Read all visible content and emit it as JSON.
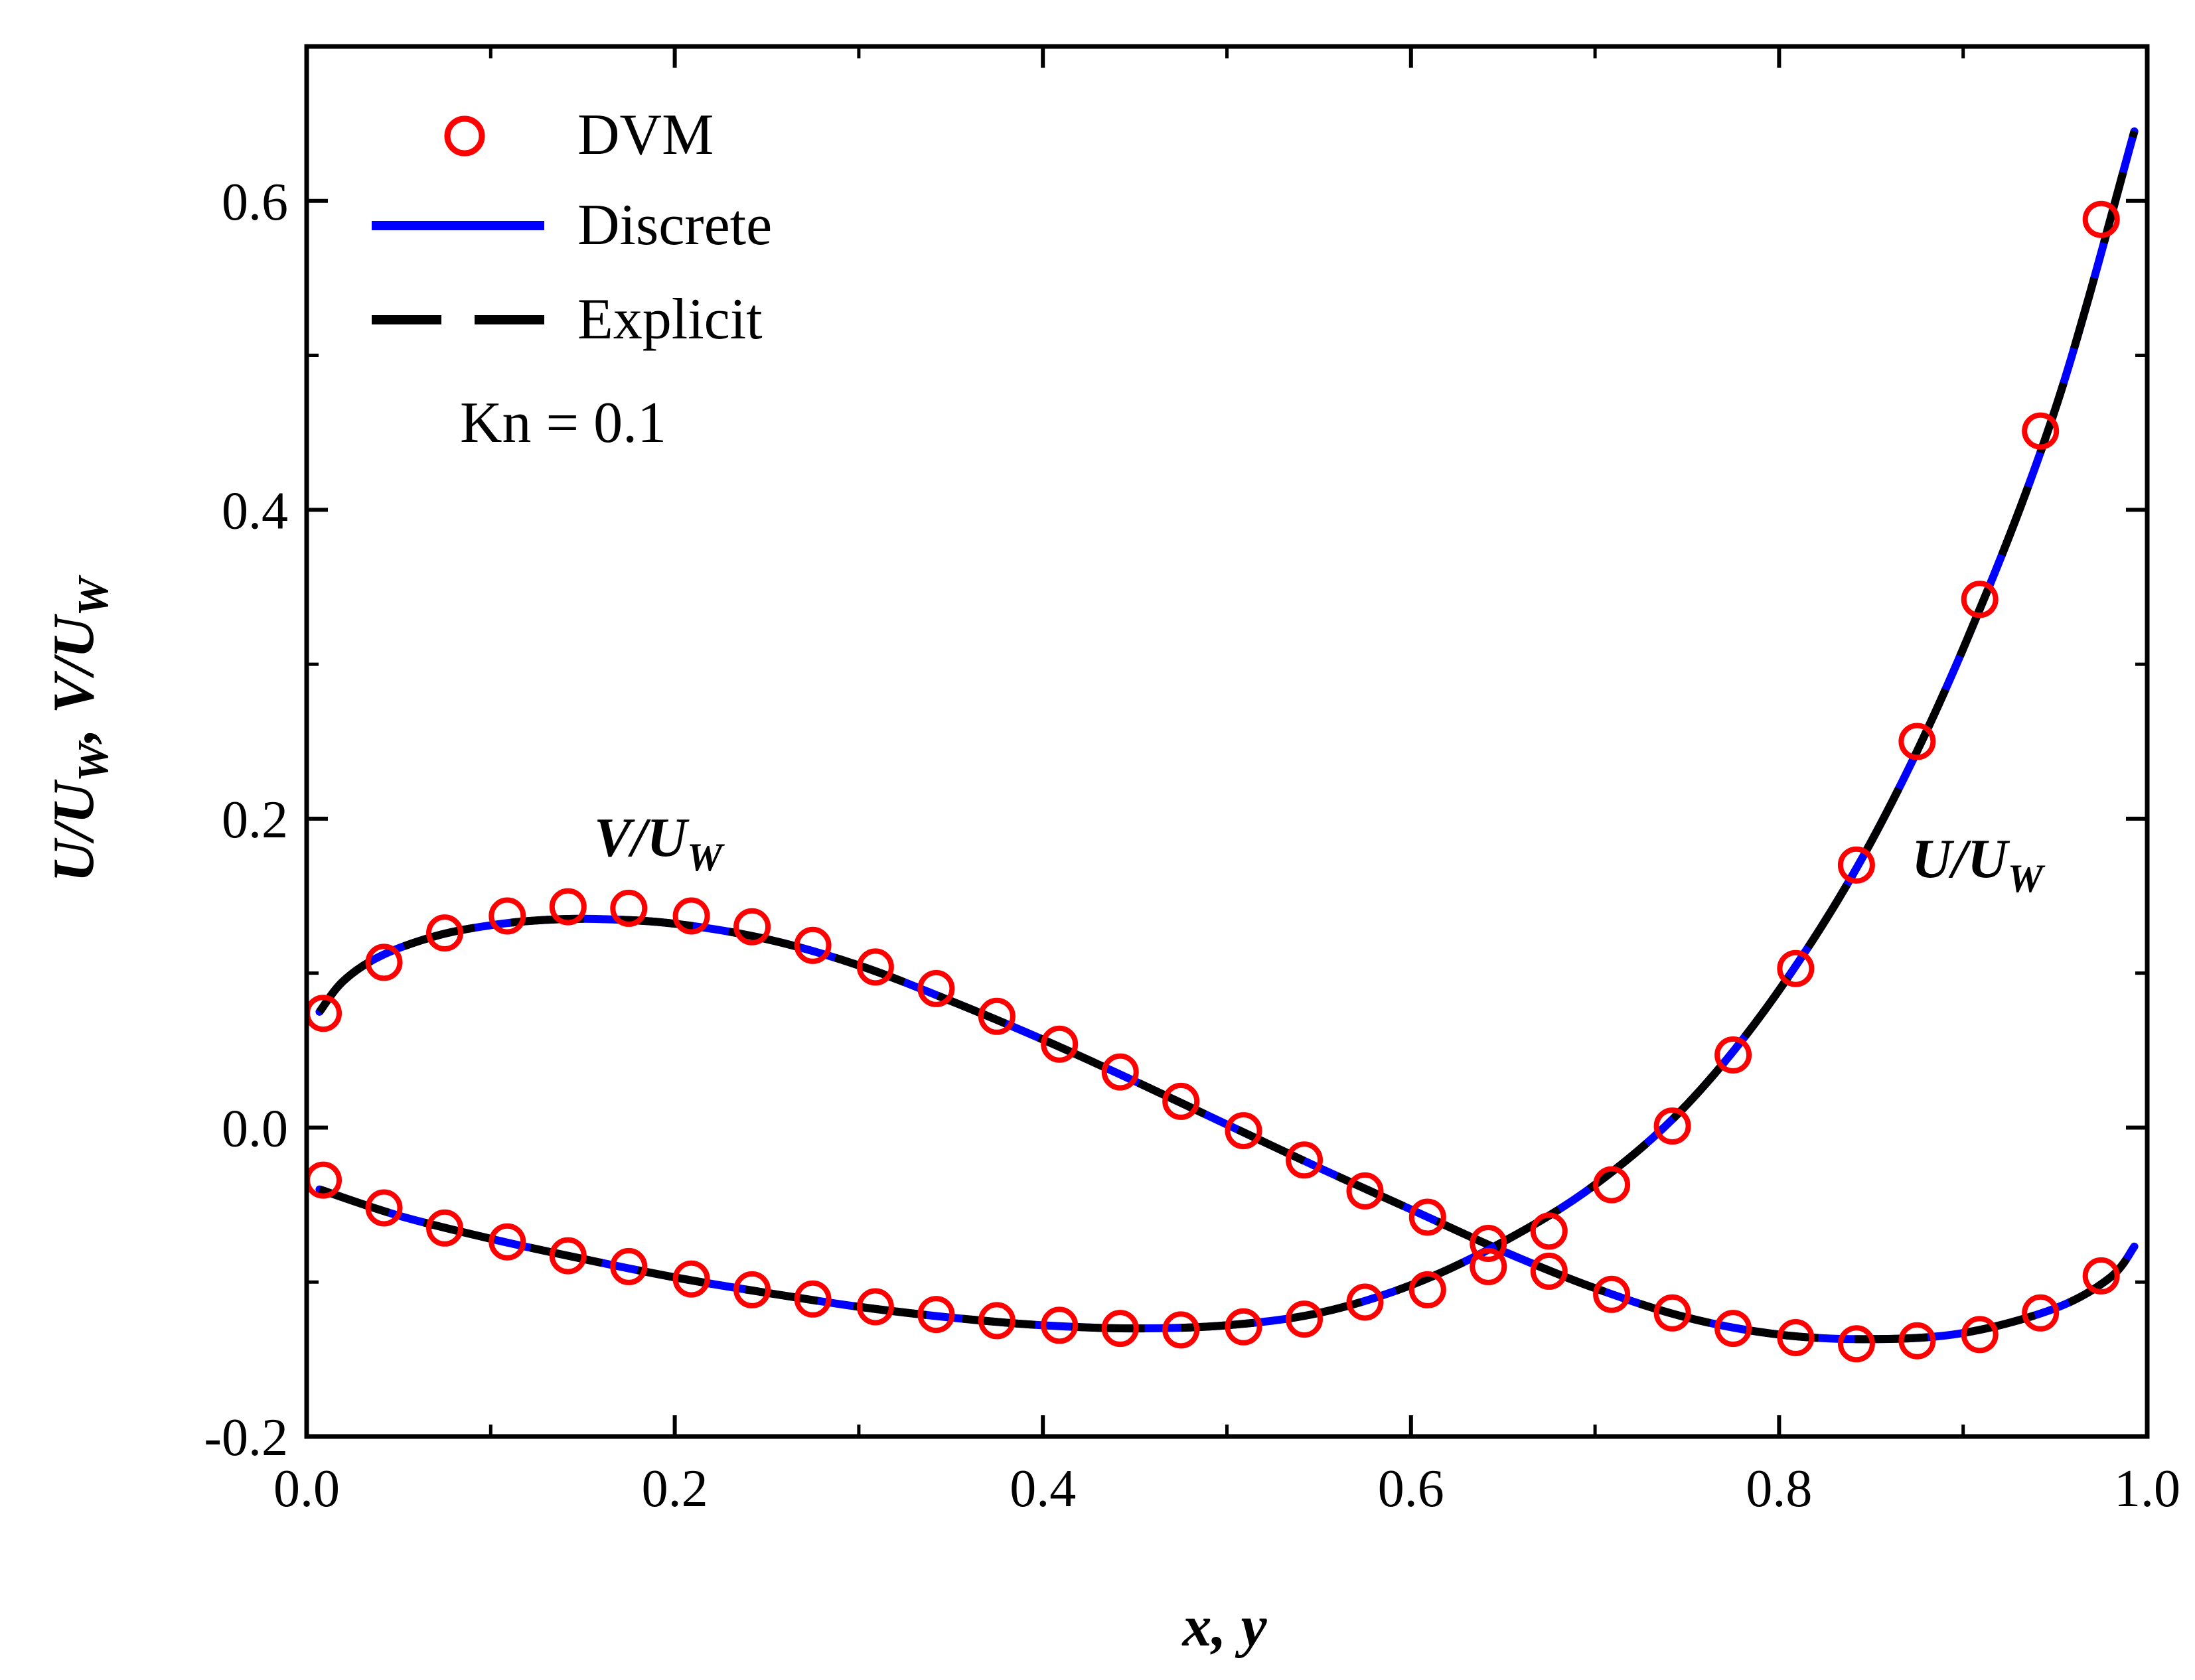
{
  "chart_data": {
    "type": "line",
    "xlabel_main": "x, y",
    "ylabel_parts": {
      "a": "U/U",
      "a_sub": "W",
      "b": ", V/U",
      "b_sub": "W"
    },
    "xlim": [
      0.0,
      1.0
    ],
    "ylim": [
      -0.2,
      0.7
    ],
    "xticks": [
      "0.0",
      "0.2",
      "0.4",
      "0.6",
      "0.8",
      "1.0"
    ],
    "xtick_values": [
      0.0,
      0.2,
      0.4,
      0.6,
      0.8,
      1.0
    ],
    "yticks": [
      "-0.2",
      "0.0",
      "0.2",
      "0.4",
      "0.6"
    ],
    "ytick_values": [
      -0.2,
      0.0,
      0.2,
      0.4,
      0.6
    ],
    "legend": {
      "position": "top-left",
      "entries": [
        {
          "label": "DVM",
          "style": "circle-marker",
          "color": "#ff0000"
        },
        {
          "label": "Discrete",
          "style": "solid-line",
          "color": "#0000ff"
        },
        {
          "label": "Explicit",
          "style": "dashed-line",
          "color": "#000000"
        }
      ]
    },
    "annotation_kn": "Kn = 0.1",
    "curve_labels": {
      "v": {
        "main": "V/U",
        "sub": "W"
      },
      "u": {
        "main": "U/U",
        "sub": "W"
      }
    },
    "series": [
      {
        "name": "V/U_W",
        "x": [
          0.007,
          0.02,
          0.04,
          0.07,
          0.1,
          0.13,
          0.16,
          0.2,
          0.25,
          0.3,
          0.35,
          0.4,
          0.45,
          0.5,
          0.55,
          0.6,
          0.65,
          0.7,
          0.75,
          0.8,
          0.85,
          0.9,
          0.95,
          0.98,
          0.993
        ],
        "y": [
          0.075,
          0.095,
          0.111,
          0.124,
          0.131,
          0.1345,
          0.135,
          0.132,
          0.122,
          0.105,
          0.082,
          0.057,
          0.03,
          0.002,
          -0.026,
          -0.053,
          -0.08,
          -0.104,
          -0.123,
          -0.134,
          -0.137,
          -0.133,
          -0.117,
          -0.097,
          -0.077
        ]
      },
      {
        "name": "U/U_W",
        "x": [
          0.007,
          0.05,
          0.1,
          0.15,
          0.2,
          0.25,
          0.3,
          0.35,
          0.4,
          0.45,
          0.5,
          0.55,
          0.6,
          0.65,
          0.7,
          0.75,
          0.8,
          0.85,
          0.9,
          0.95,
          0.993
        ],
        "y": [
          -0.04,
          -0.057,
          -0.072,
          -0.085,
          -0.097,
          -0.107,
          -0.116,
          -0.123,
          -0.128,
          -0.13,
          -0.128,
          -0.12,
          -0.102,
          -0.074,
          -0.037,
          0.015,
          0.089,
          0.185,
          0.31,
          0.465,
          0.645
        ]
      }
    ],
    "dvm": {
      "v": {
        "x": [
          0.009,
          0.042,
          0.075,
          0.109,
          0.142,
          0.175,
          0.209,
          0.242,
          0.275,
          0.309,
          0.342,
          0.375,
          0.409,
          0.442,
          0.475,
          0.509,
          0.542,
          0.575,
          0.609,
          0.642,
          0.675,
          0.709,
          0.742,
          0.775,
          0.809,
          0.842,
          0.875,
          0.909,
          0.942,
          0.975
        ],
        "y": [
          0.074,
          0.107,
          0.126,
          0.137,
          0.143,
          0.142,
          0.137,
          0.13,
          0.118,
          0.104,
          0.09,
          0.072,
          0.054,
          0.036,
          0.017,
          -0.002,
          -0.021,
          -0.041,
          -0.058,
          -0.075,
          -0.093,
          -0.108,
          -0.12,
          -0.13,
          -0.136,
          -0.14,
          -0.138,
          -0.134,
          -0.12,
          -0.096
        ]
      },
      "u": {
        "x": [
          0.009,
          0.042,
          0.075,
          0.109,
          0.142,
          0.175,
          0.209,
          0.242,
          0.275,
          0.309,
          0.342,
          0.375,
          0.409,
          0.442,
          0.475,
          0.509,
          0.542,
          0.575,
          0.609,
          0.642,
          0.675,
          0.709,
          0.742,
          0.775,
          0.809,
          0.842,
          0.875,
          0.909,
          0.942,
          0.975
        ],
        "y": [
          -0.034,
          -0.052,
          -0.065,
          -0.074,
          -0.083,
          -0.09,
          -0.098,
          -0.105,
          -0.111,
          -0.116,
          -0.121,
          -0.125,
          -0.128,
          -0.13,
          -0.131,
          -0.129,
          -0.124,
          -0.113,
          -0.105,
          -0.09,
          -0.067,
          -0.037,
          0.001,
          0.047,
          0.103,
          0.17,
          0.25,
          0.342,
          0.451,
          0.588
        ]
      }
    }
  }
}
